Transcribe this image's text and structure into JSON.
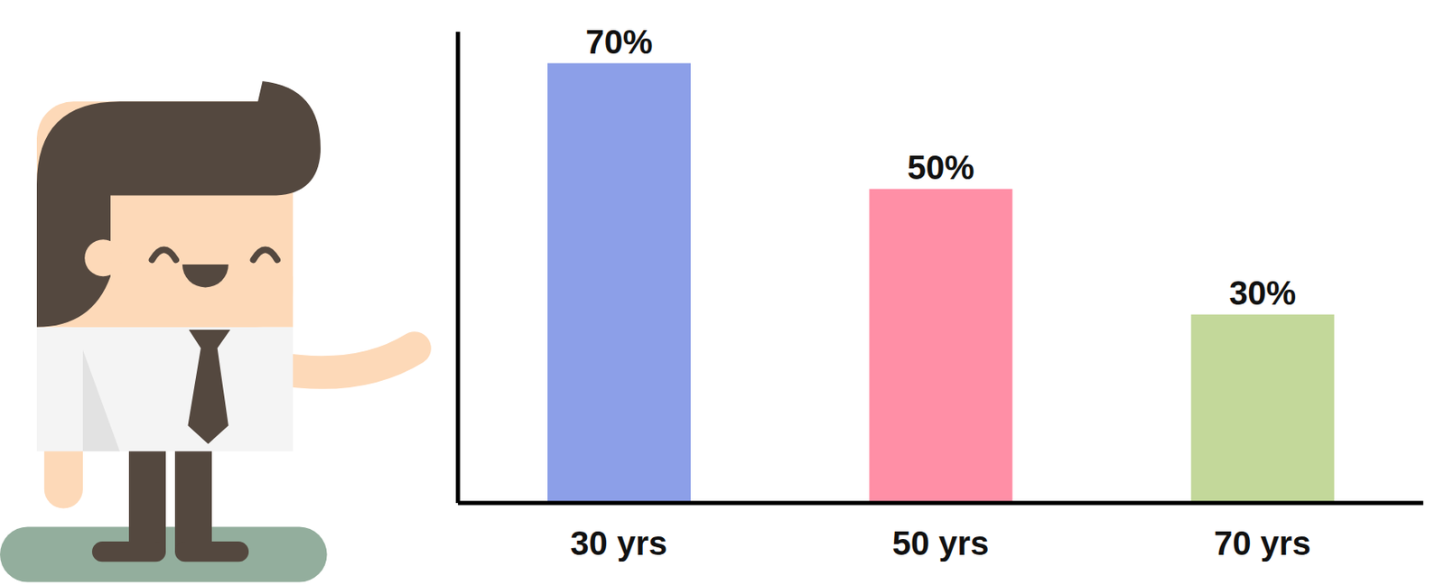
{
  "chart_data": {
    "type": "bar",
    "categories": [
      "30 yrs",
      "50 yrs",
      "70 yrs"
    ],
    "values": [
      70,
      50,
      30
    ],
    "value_labels": [
      "70%",
      "50%",
      "30%"
    ],
    "colors": [
      "#8c9fe8",
      "#ff8fa6",
      "#c3d89a"
    ],
    "ylim": [
      0,
      75
    ],
    "data_labels": true,
    "tick_labels": "x"
  }
}
